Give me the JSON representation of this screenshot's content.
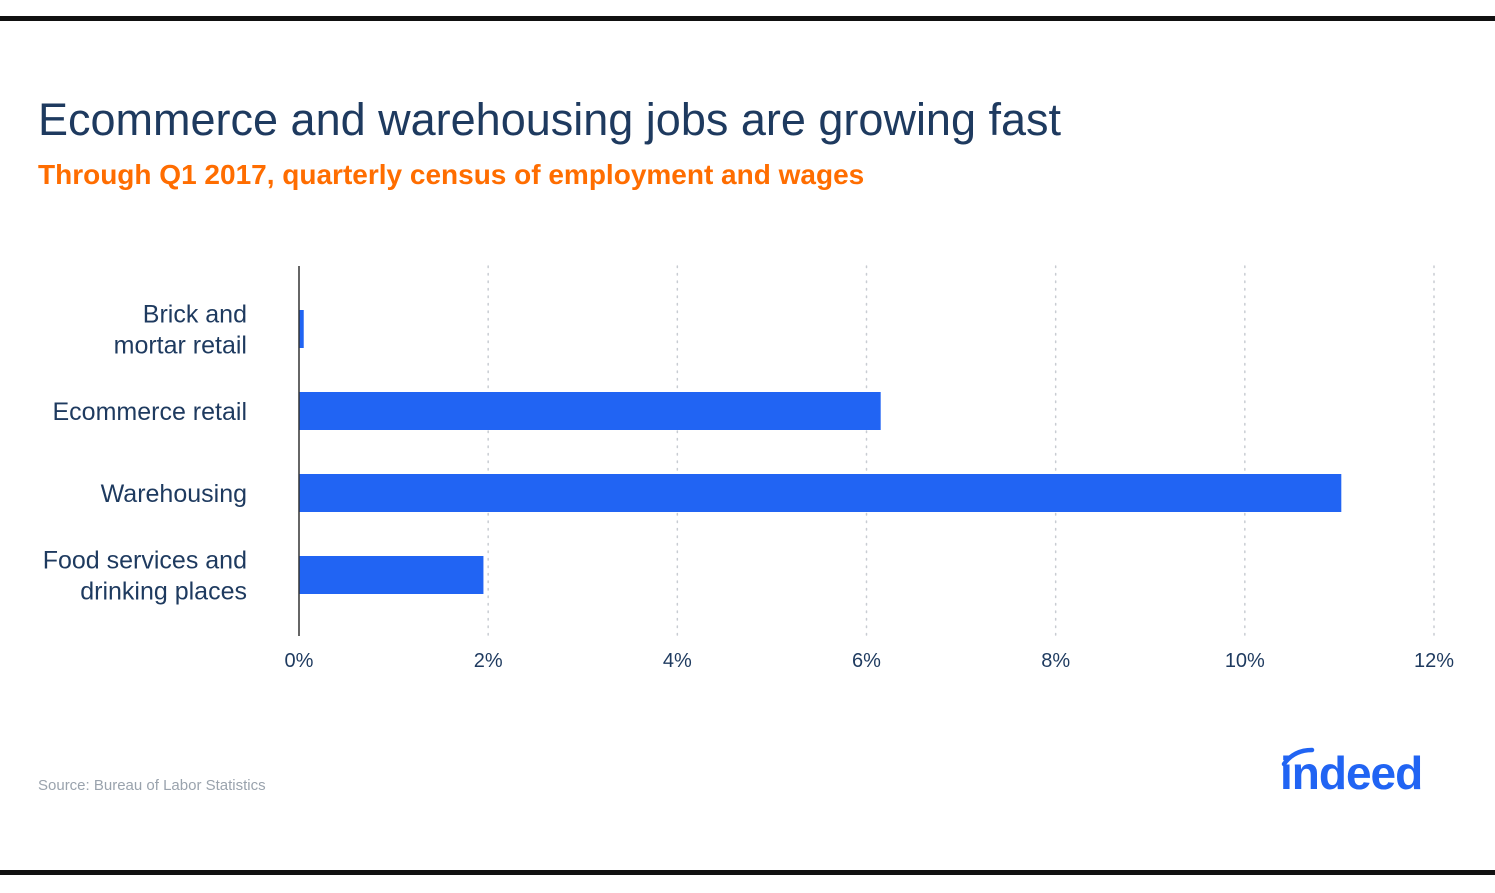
{
  "header": {
    "title": "Ecommerce and warehousing jobs are growing fast",
    "subtitle": "Through Q1 2017, quarterly census of employment and wages"
  },
  "footer": {
    "source": "Source: Bureau of Labor Statistics",
    "logo_text": "indeed"
  },
  "colors": {
    "bar": "#2164f3",
    "title": "#1e3a5f",
    "subtitle": "#ff6d00",
    "axis_text": "#1e3a5f",
    "logo": "#2164f3"
  },
  "chart_data": {
    "type": "bar",
    "orientation": "horizontal",
    "categories": [
      [
        "Brick and",
        "mortar retail"
      ],
      [
        "Ecommerce retail"
      ],
      [
        "Warehousing"
      ],
      [
        "Food services and",
        "drinking places"
      ]
    ],
    "values": [
      0.05,
      6.15,
      11.02,
      1.95
    ],
    "xlim": [
      0,
      12
    ],
    "xticks": [
      0,
      2,
      4,
      6,
      8,
      10,
      12
    ],
    "xtick_labels": [
      "0%",
      "2%",
      "4%",
      "6%",
      "8%",
      "10%",
      "12%"
    ],
    "grid": "vertical-dotted",
    "legend": "none"
  }
}
